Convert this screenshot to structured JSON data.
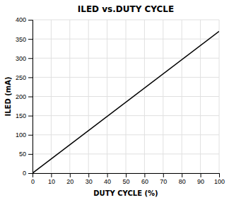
{
  "chart_data": {
    "type": "line",
    "title": "ILED vs.DUTY CYCLE",
    "xlabel": "DUTY CYCLE (%)",
    "ylabel": "ILED (mA)",
    "x": [
      0,
      100
    ],
    "values": [
      0,
      370
    ],
    "color": "#000000",
    "xlim": [
      0,
      100
    ],
    "ylim": [
      0,
      400
    ],
    "xticks": [
      0,
      10,
      20,
      30,
      40,
      50,
      60,
      70,
      80,
      90,
      100
    ],
    "yticks": [
      0,
      50,
      100,
      150,
      200,
      250,
      300,
      350,
      400
    ],
    "grid": true
  }
}
